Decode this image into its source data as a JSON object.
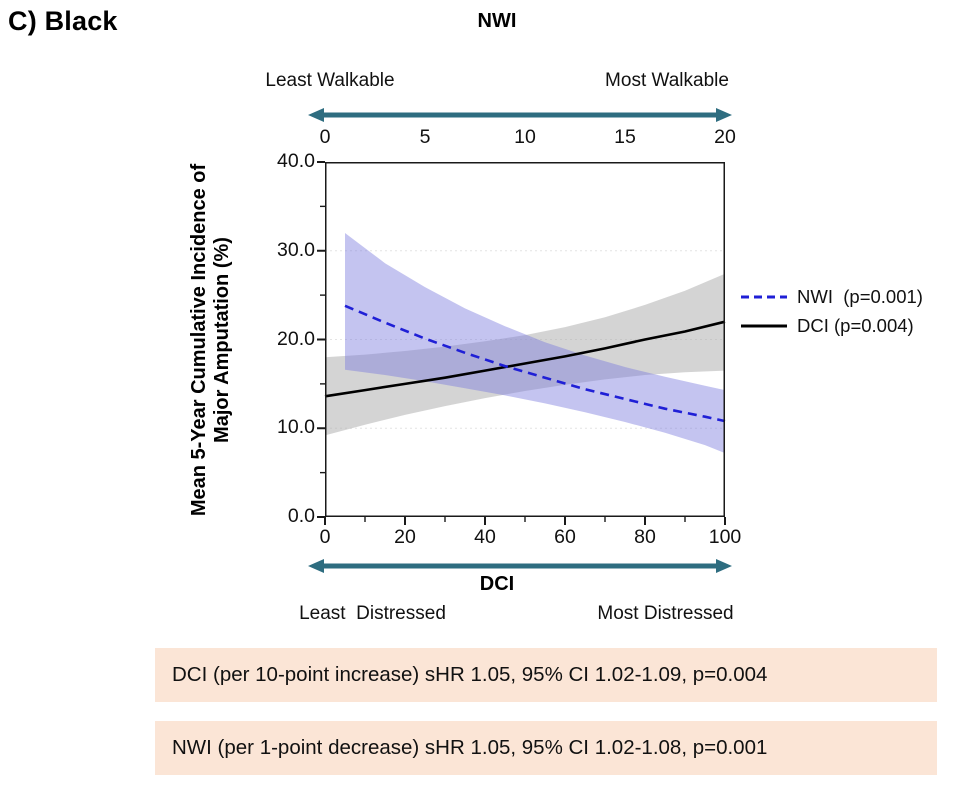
{
  "page": {
    "panel_title": "C) Black"
  },
  "chart_data": {
    "type": "line",
    "title": "",
    "legend_position": "right",
    "grid": "light horizontal dashed",
    "y_axis": {
      "label_line1": "Mean 5-Year Cumulative Incidence of",
      "label_line2": "Major Amputation (%)",
      "range": [
        0,
        40
      ],
      "ticks": [
        0,
        10,
        20,
        30,
        40
      ],
      "tick_labels": [
        "0.0",
        "10.0",
        "20.0",
        "30.0",
        "40.0"
      ],
      "minor_ticks": [
        5,
        15,
        25,
        35
      ],
      "gridlines": [
        10,
        20,
        30
      ]
    },
    "top_axis": {
      "label": "NWI",
      "left_caption": "Least Walkable",
      "right_caption": "Most Walkable",
      "range": [
        0,
        20
      ],
      "ticks": [
        0,
        5,
        10,
        15,
        20
      ]
    },
    "bottom_axis": {
      "label": "DCI",
      "left_caption": "Least  Distressed",
      "right_caption": "Most Distressed",
      "range": [
        0,
        100
      ],
      "ticks": [
        0,
        20,
        40,
        60,
        80,
        100
      ],
      "minor_ticks": [
        10,
        30,
        50,
        70,
        90
      ]
    },
    "series": [
      {
        "name": "NWI",
        "legend_label": "NWI  (p=0.001)",
        "p_value": "p=0.001",
        "axis": "top",
        "style": "dashed",
        "color": "#1f1fd6",
        "band_color": "#7c7cde",
        "band_opacity": 0.45,
        "x": [
          1,
          3,
          5,
          7,
          9,
          11,
          13,
          15,
          17,
          19,
          20
        ],
        "y": [
          23.8,
          21.9,
          20.1,
          18.5,
          17.0,
          15.7,
          14.4,
          13.3,
          12.2,
          11.3,
          10.8
        ],
        "band_upper": [
          32.0,
          28.6,
          25.9,
          23.5,
          21.5,
          19.7,
          18.2,
          16.9,
          15.8,
          14.8,
          14.3
        ],
        "band_lower": [
          16.6,
          16.0,
          15.3,
          14.5,
          13.7,
          12.8,
          11.8,
          10.7,
          9.5,
          8.1,
          7.2
        ]
      },
      {
        "name": "DCI",
        "legend_label": "DCI (p=0.004)",
        "p_value": "p=0.004",
        "axis": "bottom",
        "style": "solid",
        "color": "#000000",
        "band_color": "#a9a9a9",
        "band_opacity": 0.5,
        "x": [
          0,
          10,
          20,
          30,
          40,
          50,
          60,
          70,
          80,
          90,
          100
        ],
        "y": [
          13.6,
          14.3,
          15.0,
          15.7,
          16.5,
          17.3,
          18.1,
          19.0,
          20.0,
          20.9,
          22.0
        ],
        "band_upper": [
          18.0,
          18.3,
          18.7,
          19.2,
          19.8,
          20.5,
          21.4,
          22.5,
          23.9,
          25.5,
          27.4
        ],
        "band_lower": [
          9.2,
          10.4,
          11.5,
          12.5,
          13.4,
          14.2,
          14.9,
          15.5,
          16.0,
          16.3,
          16.5
        ]
      }
    ]
  },
  "stat_boxes": [
    {
      "text": "DCI (per 10-point increase) sHR 1.05, 95% CI 1.02-1.09, p=0.004"
    },
    {
      "text": "NWI (per 1-point decrease) sHR 1.05, 95% CI 1.02-1.08, p=0.001"
    }
  ],
  "colors": {
    "axis_arrow": "#2e6d80",
    "stat_box_bg": "#fbe5d6",
    "plot_border": "#1a1a1a",
    "gridline": "#e4e4e4"
  }
}
